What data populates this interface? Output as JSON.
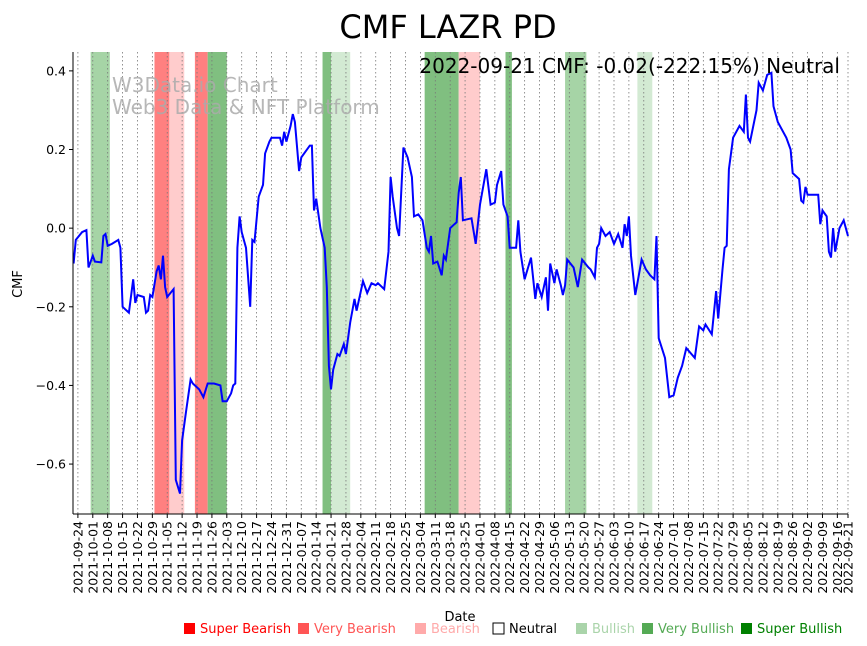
{
  "chart_data": {
    "type": "line",
    "title": "CMF LAZR PD",
    "xlabel": "Date",
    "ylabel": "CMF",
    "x_start_date": "2021-09-24",
    "ylim": [
      -0.727,
      0.448
    ],
    "xlim_days": [
      -2.3,
      362
    ],
    "yticks": [
      0.4,
      0.2,
      0.0,
      -0.2,
      -0.4,
      -0.6
    ],
    "ytick_labels": [
      "0.4",
      "0.2",
      "0.0",
      "−0.2",
      "−0.4",
      "−0.6"
    ],
    "xtick_days": [
      0,
      7,
      14,
      21,
      28,
      35,
      42,
      49,
      56,
      63,
      70,
      77,
      84,
      91,
      98,
      105,
      112,
      119,
      126,
      133,
      140,
      147,
      154,
      161,
      168,
      175,
      182,
      189,
      196,
      203,
      210,
      217,
      224,
      231,
      238,
      245,
      252,
      259,
      266,
      273,
      280,
      287,
      294,
      301,
      308,
      315,
      322,
      329,
      336,
      343,
      350,
      357,
      362
    ],
    "xtick_labels": [
      "2021-09-24",
      "2021-10-01",
      "2021-10-08",
      "2021-10-15",
      "2021-10-22",
      "2021-10-29",
      "2021-11-05",
      "2021-11-12",
      "2021-11-19",
      "2021-11-26",
      "2021-12-03",
      "2021-12-10",
      "2021-12-17",
      "2021-12-24",
      "2021-12-31",
      "2022-01-07",
      "2022-01-14",
      "2022-01-21",
      "2022-01-28",
      "2022-02-04",
      "2022-02-11",
      "2022-02-18",
      "2022-02-25",
      "2022-03-04",
      "2022-03-11",
      "2022-03-18",
      "2022-03-25",
      "2022-04-01",
      "2022-04-08",
      "2022-04-15",
      "2022-04-22",
      "2022-04-29",
      "2022-05-06",
      "2022-05-13",
      "2022-05-20",
      "2022-05-27",
      "2022-06-03",
      "2022-06-10",
      "2022-06-17",
      "2022-06-24",
      "2022-07-01",
      "2022-07-08",
      "2022-07-15",
      "2022-07-22",
      "2022-07-29",
      "2022-08-05",
      "2022-08-12",
      "2022-08-19",
      "2022-08-26",
      "2022-09-02",
      "2022-09-09",
      "2022-09-16",
      "2022-09-21"
    ],
    "series": [
      {
        "name": "CMF",
        "color": "#0000ff",
        "points": [
          [
            -2,
            -0.09
          ],
          [
            -1,
            -0.03
          ],
          [
            2,
            -0.01
          ],
          [
            4,
            -0.005
          ],
          [
            5,
            -0.1
          ],
          [
            7,
            -0.07
          ],
          [
            8,
            -0.085
          ],
          [
            11,
            -0.087
          ],
          [
            12,
            -0.02
          ],
          [
            13,
            -0.015
          ],
          [
            14,
            -0.045
          ],
          [
            16,
            -0.04
          ],
          [
            19,
            -0.03
          ],
          [
            20,
            -0.05
          ],
          [
            21,
            -0.2
          ],
          [
            24,
            -0.215
          ],
          [
            26,
            -0.13
          ],
          [
            27,
            -0.19
          ],
          [
            28,
            -0.17
          ],
          [
            31,
            -0.175
          ],
          [
            32,
            -0.215
          ],
          [
            33,
            -0.21
          ],
          [
            34,
            -0.17
          ],
          [
            35,
            -0.175
          ],
          [
            37,
            -0.11
          ],
          [
            38,
            -0.095
          ],
          [
            39,
            -0.13
          ],
          [
            40,
            -0.07
          ],
          [
            41,
            -0.15
          ],
          [
            42,
            -0.175
          ],
          [
            45,
            -0.155
          ],
          [
            46,
            -0.64
          ],
          [
            48,
            -0.675
          ],
          [
            49,
            -0.54
          ],
          [
            51,
            -0.46
          ],
          [
            53,
            -0.385
          ],
          [
            54,
            -0.395
          ],
          [
            57,
            -0.41
          ],
          [
            59,
            -0.43
          ],
          [
            61,
            -0.395
          ],
          [
            64,
            -0.395
          ],
          [
            67,
            -0.4
          ],
          [
            68,
            -0.44
          ],
          [
            70,
            -0.44
          ],
          [
            72,
            -0.42
          ],
          [
            73,
            -0.4
          ],
          [
            74,
            -0.395
          ],
          [
            75,
            -0.05
          ],
          [
            76,
            0.03
          ],
          [
            77,
            -0.01
          ],
          [
            79,
            -0.05
          ],
          [
            81,
            -0.2
          ],
          [
            82,
            -0.03
          ],
          [
            83,
            -0.035
          ],
          [
            85,
            0.08
          ],
          [
            87,
            0.11
          ],
          [
            88,
            0.19
          ],
          [
            90,
            0.22
          ],
          [
            91,
            0.23
          ],
          [
            95,
            0.23
          ],
          [
            96,
            0.21
          ],
          [
            97,
            0.245
          ],
          [
            98,
            0.22
          ],
          [
            100,
            0.26
          ],
          [
            101,
            0.29
          ],
          [
            102,
            0.27
          ],
          [
            104,
            0.145
          ],
          [
            105,
            0.18
          ],
          [
            109,
            0.21
          ],
          [
            110,
            0.21
          ],
          [
            111,
            0.045
          ],
          [
            112,
            0.075
          ],
          [
            114,
            0.0
          ],
          [
            116,
            -0.05
          ],
          [
            117,
            -0.15
          ],
          [
            118,
            -0.35
          ],
          [
            119,
            -0.41
          ],
          [
            120,
            -0.36
          ],
          [
            122,
            -0.32
          ],
          [
            123,
            -0.325
          ],
          [
            125,
            -0.295
          ],
          [
            126,
            -0.32
          ],
          [
            128,
            -0.24
          ],
          [
            130,
            -0.18
          ],
          [
            131,
            -0.21
          ],
          [
            134,
            -0.135
          ],
          [
            136,
            -0.165
          ],
          [
            138,
            -0.14
          ],
          [
            140,
            -0.145
          ],
          [
            141,
            -0.14
          ],
          [
            144,
            -0.155
          ],
          [
            146,
            -0.06
          ],
          [
            147,
            0.13
          ],
          [
            148,
            0.08
          ],
          [
            150,
            0.0
          ],
          [
            151,
            -0.02
          ],
          [
            153,
            0.205
          ],
          [
            155,
            0.18
          ],
          [
            157,
            0.13
          ],
          [
            158,
            0.03
          ],
          [
            160,
            0.035
          ],
          [
            162,
            0.02
          ],
          [
            164,
            -0.05
          ],
          [
            165,
            -0.06
          ],
          [
            166,
            -0.02
          ],
          [
            167,
            -0.09
          ],
          [
            169,
            -0.085
          ],
          [
            171,
            -0.12
          ],
          [
            172,
            -0.07
          ],
          [
            173,
            -0.08
          ],
          [
            175,
            0.0
          ],
          [
            177,
            0.01
          ],
          [
            178,
            0.015
          ],
          [
            179,
            0.09
          ],
          [
            180,
            0.13
          ],
          [
            181,
            0.02
          ],
          [
            185,
            0.025
          ],
          [
            187,
            -0.04
          ],
          [
            189,
            0.06
          ],
          [
            192,
            0.15
          ],
          [
            194,
            0.06
          ],
          [
            196,
            0.065
          ],
          [
            197,
            0.11
          ],
          [
            199,
            0.145
          ],
          [
            200,
            0.06
          ],
          [
            202,
            0.03
          ],
          [
            203,
            -0.05
          ],
          [
            206,
            -0.05
          ],
          [
            207,
            0.02
          ],
          [
            208,
            -0.06
          ],
          [
            210,
            -0.13
          ],
          [
            213,
            -0.075
          ],
          [
            215,
            -0.18
          ],
          [
            216,
            -0.14
          ],
          [
            218,
            -0.175
          ],
          [
            220,
            -0.125
          ],
          [
            221,
            -0.21
          ],
          [
            222,
            -0.09
          ],
          [
            224,
            -0.14
          ],
          [
            225,
            -0.105
          ],
          [
            227,
            -0.145
          ],
          [
            228,
            -0.17
          ],
          [
            229,
            -0.145
          ],
          [
            230,
            -0.08
          ],
          [
            233,
            -0.1
          ],
          [
            235,
            -0.15
          ],
          [
            237,
            -0.08
          ],
          [
            240,
            -0.1
          ],
          [
            241,
            -0.105
          ],
          [
            243,
            -0.125
          ],
          [
            244,
            -0.05
          ],
          [
            245,
            -0.04
          ],
          [
            246,
            0.0
          ],
          [
            248,
            -0.02
          ],
          [
            250,
            -0.01
          ],
          [
            252,
            -0.04
          ],
          [
            254,
            -0.015
          ],
          [
            256,
            -0.05
          ],
          [
            257,
            0.01
          ],
          [
            258,
            -0.02
          ],
          [
            259,
            0.03
          ],
          [
            260,
            -0.07
          ],
          [
            262,
            -0.17
          ],
          [
            265,
            -0.08
          ],
          [
            267,
            -0.105
          ],
          [
            269,
            -0.12
          ],
          [
            271,
            -0.13
          ],
          [
            272,
            -0.02
          ],
          [
            273,
            -0.28
          ],
          [
            276,
            -0.33
          ],
          [
            278,
            -0.43
          ],
          [
            280,
            -0.425
          ],
          [
            282,
            -0.38
          ],
          [
            284,
            -0.35
          ],
          [
            286,
            -0.305
          ],
          [
            290,
            -0.33
          ],
          [
            292,
            -0.25
          ],
          [
            294,
            -0.26
          ],
          [
            295,
            -0.245
          ],
          [
            298,
            -0.27
          ],
          [
            300,
            -0.16
          ],
          [
            301,
            -0.23
          ],
          [
            303,
            -0.105
          ],
          [
            304,
            -0.05
          ],
          [
            305,
            -0.045
          ],
          [
            306,
            0.15
          ],
          [
            308,
            0.23
          ],
          [
            311,
            0.26
          ],
          [
            313,
            0.245
          ],
          [
            314,
            0.34
          ],
          [
            315,
            0.23
          ],
          [
            316,
            0.22
          ],
          [
            319,
            0.3
          ],
          [
            320,
            0.37
          ],
          [
            322,
            0.35
          ],
          [
            324,
            0.39
          ],
          [
            326,
            0.395
          ],
          [
            327,
            0.31
          ],
          [
            329,
            0.27
          ],
          [
            333,
            0.23
          ],
          [
            335,
            0.2
          ],
          [
            336,
            0.14
          ],
          [
            339,
            0.125
          ],
          [
            340,
            0.07
          ],
          [
            341,
            0.065
          ],
          [
            342,
            0.105
          ],
          [
            343,
            0.085
          ],
          [
            348,
            0.085
          ],
          [
            349,
            0.01
          ],
          [
            350,
            0.045
          ],
          [
            352,
            0.03
          ],
          [
            353,
            -0.06
          ],
          [
            354,
            -0.075
          ],
          [
            355,
            0.0
          ],
          [
            356,
            -0.06
          ],
          [
            358,
            0.0
          ],
          [
            360,
            0.02
          ],
          [
            362,
            -0.02
          ]
        ]
      }
    ],
    "bands": [
      {
        "start": 6,
        "end": 15,
        "signal": "Bullish",
        "color": "#a6d4a6"
      },
      {
        "start": 36,
        "end": 43,
        "signal": "Very Bearish",
        "color": "#ff8080"
      },
      {
        "start": 43,
        "end": 50,
        "signal": "Bearish",
        "color": "#ffcccc"
      },
      {
        "start": 55,
        "end": 61,
        "signal": "Very Bearish",
        "color": "#ff8080"
      },
      {
        "start": 61,
        "end": 70,
        "signal": "Very Bullish",
        "color": "#80bf80"
      },
      {
        "start": 115,
        "end": 119,
        "signal": "Very Bullish",
        "color": "#80bf80"
      },
      {
        "start": 119,
        "end": 128,
        "signal": "Bullish",
        "color": "#d3ead3"
      },
      {
        "start": 163,
        "end": 179,
        "signal": "Very Bullish",
        "color": "#80bf80"
      },
      {
        "start": 179,
        "end": 189,
        "signal": "Bearish",
        "color": "#ffcccc"
      },
      {
        "start": 201,
        "end": 204,
        "signal": "Very Bullish",
        "color": "#80bf80"
      },
      {
        "start": 229,
        "end": 239,
        "signal": "Bullish",
        "color": "#a6d4a6"
      },
      {
        "start": 263,
        "end": 270,
        "signal": "Bullish",
        "color": "#d3ead3"
      }
    ],
    "annotation": "2022-09-21 CMF: -0.02(-222.15%) Neutral",
    "watermark": [
      "W3Data.io Chart",
      "Web3 Data & NFT Platform"
    ],
    "legend_placement": "bottom",
    "legend": [
      {
        "label": "Super Bearish",
        "color": "#ff0000",
        "text_color": "#ff0000"
      },
      {
        "label": "Very Bearish",
        "color": "#ff5555",
        "text_color": "#ff5555"
      },
      {
        "label": "Bearish",
        "color": "#ffaaaa",
        "text_color": "#ffaaaa"
      },
      {
        "label": "Neutral",
        "color": "#ffffff",
        "text_color": "#000000"
      },
      {
        "label": "Bullish",
        "color": "#aad4aa",
        "text_color": "#aad4aa"
      },
      {
        "label": "Very Bullish",
        "color": "#55aa55",
        "text_color": "#55aa55"
      },
      {
        "label": "Super Bullish",
        "color": "#008000",
        "text_color": "#008000"
      }
    ]
  }
}
